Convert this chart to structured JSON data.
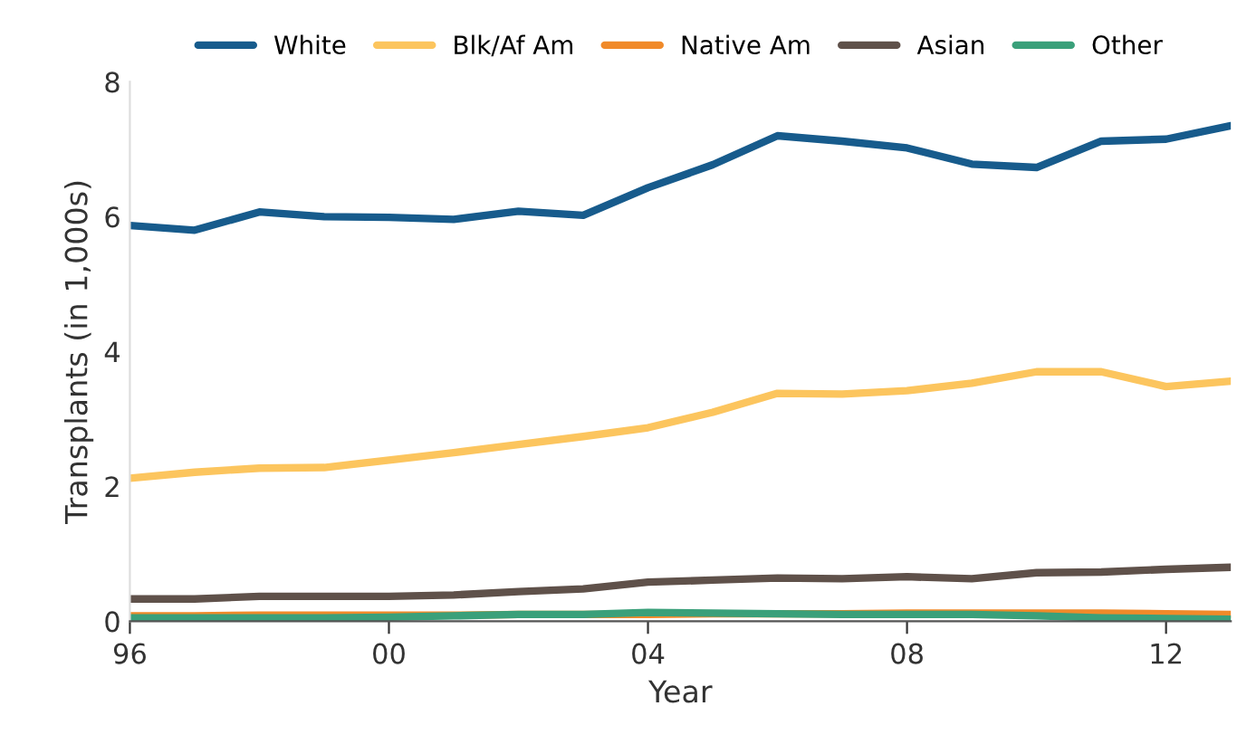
{
  "chart_data": {
    "type": "line",
    "xlabel": "Year",
    "ylabel": "Transplants (in 1,000s)",
    "x": [
      1996,
      1997,
      1998,
      1999,
      2000,
      2001,
      2002,
      2003,
      2004,
      2005,
      2006,
      2007,
      2008,
      2009,
      2010,
      2011,
      2012,
      2013
    ],
    "series": [
      {
        "name": "White",
        "color": "#175b8c",
        "values": [
          5.87,
          5.8,
          6.07,
          6.0,
          5.99,
          5.96,
          6.08,
          6.02,
          6.43,
          6.77,
          7.2,
          7.12,
          7.02,
          6.78,
          6.73,
          7.12,
          7.15,
          7.35
        ]
      },
      {
        "name": "Blk/Af Am",
        "color": "#fcc55e",
        "values": [
          2.12,
          2.21,
          2.27,
          2.28,
          2.39,
          2.5,
          2.62,
          2.74,
          2.87,
          3.1,
          3.38,
          3.37,
          3.42,
          3.53,
          3.7,
          3.7,
          3.48,
          3.56
        ]
      },
      {
        "name": "Native Am",
        "color": "#f08a2a",
        "values": [
          0.08,
          0.08,
          0.09,
          0.09,
          0.09,
          0.09,
          0.1,
          0.1,
          0.1,
          0.11,
          0.11,
          0.11,
          0.12,
          0.12,
          0.12,
          0.12,
          0.11,
          0.1
        ]
      },
      {
        "name": "Asian",
        "color": "#5f514a",
        "values": [
          0.33,
          0.33,
          0.37,
          0.37,
          0.37,
          0.39,
          0.44,
          0.48,
          0.58,
          0.61,
          0.64,
          0.63,
          0.66,
          0.63,
          0.72,
          0.73,
          0.77,
          0.8
        ]
      },
      {
        "name": "Other",
        "color": "#3aa07a",
        "values": [
          0.05,
          0.05,
          0.05,
          0.05,
          0.06,
          0.08,
          0.1,
          0.1,
          0.13,
          0.12,
          0.11,
          0.1,
          0.1,
          0.1,
          0.08,
          0.05,
          0.04,
          0.03
        ]
      }
    ],
    "xlim": [
      1996,
      2013
    ],
    "xticks": [
      {
        "value": 1996,
        "label": "96"
      },
      {
        "value": 2000,
        "label": "00"
      },
      {
        "value": 2004,
        "label": "04"
      },
      {
        "value": 2008,
        "label": "08"
      },
      {
        "value": 2012,
        "label": "12"
      }
    ],
    "ylim": [
      0,
      8
    ],
    "yticks": [
      0,
      2,
      4,
      6,
      8
    ],
    "legend": "top",
    "marker": "none",
    "line_style": "solid",
    "grid": false
  }
}
